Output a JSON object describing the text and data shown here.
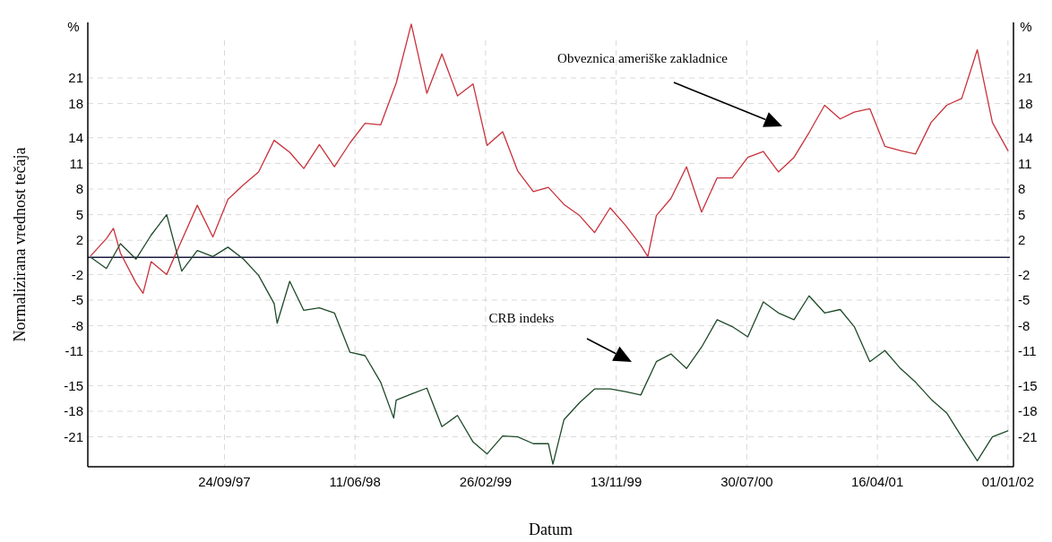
{
  "chart_data": {
    "type": "line",
    "xlabel": "Datum",
    "ylabel": "Normalizirana vrednost tečaja",
    "annotations": [
      "%",
      "%",
      "Obveznica ameriške zakladnice",
      "CRB indeks"
    ],
    "xlim": [
      "1996-12-26",
      "2002-01-12"
    ],
    "xticks": [
      {
        "value": "1997-09-24",
        "label": "24/09/97"
      },
      {
        "value": "1998-06-11",
        "label": "11/06/98"
      },
      {
        "value": "1999-02-26",
        "label": "26/02/99"
      },
      {
        "value": "1999-11-13",
        "label": "13/11/99"
      },
      {
        "value": "2000-07-30",
        "label": "30/07/00"
      },
      {
        "value": "2001-04-16",
        "label": "16/04/01"
      },
      {
        "value": "2002-01-01",
        "label": "01/01/02"
      }
    ],
    "ylim": [
      -24.5,
      27.5
    ],
    "yticks": [
      21,
      18,
      14,
      11,
      8,
      5,
      2,
      -2,
      -5,
      -8,
      -11,
      -15,
      -18,
      -21
    ],
    "y2lim": [
      -24.5,
      27.5
    ],
    "y2ticks": [
      21,
      18,
      14,
      11,
      8,
      5,
      2,
      -2,
      -5,
      -8,
      -11,
      -15,
      -18,
      -21
    ],
    "grid": true,
    "ref_lines": [
      {
        "axis": "y",
        "value": 0,
        "color": "#1a1a40"
      }
    ],
    "series": [
      {
        "color": "#c8323c",
        "x": [
          "1997-01-01",
          "1997-02-01",
          "1997-02-15",
          "1997-03-01",
          "1997-04-01",
          "1997-04-15",
          "1997-05-01",
          "1997-06-01",
          "1997-07-01",
          "1997-08-01",
          "1997-09-01",
          "1997-10-01",
          "1997-11-01",
          "1997-12-01",
          "1998-01-01",
          "1998-02-01",
          "1998-03-01",
          "1998-04-01",
          "1998-05-01",
          "1998-06-01",
          "1998-07-01",
          "1998-08-01",
          "1998-09-01",
          "1998-10-01",
          "1998-11-01",
          "1998-12-01",
          "1999-01-01",
          "1999-02-01",
          "1999-03-01",
          "1999-04-01",
          "1999-05-01",
          "1999-06-01",
          "1999-07-01",
          "1999-08-01",
          "1999-09-01",
          "1999-10-01",
          "1999-11-01",
          "1999-12-01",
          "2000-01-01",
          "2000-01-15",
          "2000-02-01",
          "2000-03-01",
          "2000-04-01",
          "2000-05-01",
          "2000-06-01",
          "2000-07-01",
          "2000-08-01",
          "2000-09-01",
          "2000-10-01",
          "2000-11-01",
          "2000-12-01",
          "2001-01-01",
          "2001-02-01",
          "2001-03-01",
          "2001-04-01",
          "2001-05-01",
          "2001-06-01",
          "2001-07-01",
          "2001-08-01",
          "2001-09-01",
          "2001-10-01",
          "2001-11-01",
          "2001-12-01",
          "2002-01-01"
        ],
        "values": [
          0.2,
          2.2,
          3.4,
          0.5,
          -3.0,
          -4.2,
          -0.5,
          -2.0,
          2.0,
          6.1,
          2.4,
          6.8,
          8.5,
          10.0,
          13.7,
          12.3,
          10.4,
          13.2,
          10.6,
          13.4,
          15.7,
          15.5,
          20.4,
          27.3,
          19.2,
          23.8,
          18.9,
          20.3,
          13.1,
          14.7,
          10.1,
          7.7,
          8.2,
          6.2,
          4.9,
          2.9,
          5.8,
          3.8,
          1.4,
          0.1,
          4.9,
          6.9,
          10.6,
          5.3,
          9.3,
          9.3,
          11.7,
          12.4,
          10.0,
          11.7,
          14.6,
          17.8,
          16.2,
          17.0,
          17.4,
          13.0,
          12.5,
          12.1,
          15.8,
          17.8,
          18.6,
          24.3,
          15.8,
          12.5
        ]
      },
      {
        "color": "#1e4a28",
        "x": [
          "1997-01-01",
          "1997-02-01",
          "1997-03-01",
          "1997-04-01",
          "1997-05-01",
          "1997-06-01",
          "1997-07-01",
          "1997-08-01",
          "1997-09-01",
          "1997-10-01",
          "1997-11-01",
          "1997-12-01",
          "1998-01-01",
          "1998-01-07",
          "1998-02-01",
          "1998-03-01",
          "1998-04-01",
          "1998-05-01",
          "1998-06-01",
          "1998-07-01",
          "1998-08-01",
          "1998-08-27",
          "1998-09-01",
          "1998-10-01",
          "1998-11-01",
          "1998-12-01",
          "1999-01-01",
          "1999-02-01",
          "1999-03-01",
          "1999-04-01",
          "1999-05-01",
          "1999-06-01",
          "1999-07-01",
          "1999-07-10",
          "1999-08-01",
          "1999-09-01",
          "1999-10-01",
          "1999-11-01",
          "1999-12-01",
          "2000-01-01",
          "2000-02-01",
          "2000-03-01",
          "2000-04-01",
          "2000-05-01",
          "2000-06-01",
          "2000-07-01",
          "2000-08-01",
          "2000-09-01",
          "2000-10-01",
          "2000-11-01",
          "2000-12-01",
          "2001-01-01",
          "2001-02-01",
          "2001-03-01",
          "2001-04-01",
          "2001-05-01",
          "2001-06-01",
          "2001-07-01",
          "2001-08-01",
          "2001-09-01",
          "2001-10-01",
          "2001-11-01",
          "2001-12-01",
          "2002-01-01"
        ],
        "values": [
          0,
          -1.3,
          1.6,
          -0.2,
          2.6,
          5.0,
          -1.6,
          0.8,
          0.1,
          1.2,
          -0.2,
          -2.1,
          -5.4,
          -7.7,
          -2.8,
          -6.2,
          -5.9,
          -6.5,
          -11.1,
          -11.5,
          -14.6,
          -18.8,
          -16.7,
          -16.0,
          -15.3,
          -19.8,
          -18.5,
          -21.6,
          -23.0,
          -20.9,
          -21.0,
          -21.8,
          -21.8,
          -24.2,
          -19.0,
          -17.0,
          -15.4,
          -15.4,
          -15.7,
          -16.1,
          -12.2,
          -11.3,
          -13.0,
          -10.5,
          -7.3,
          -8.1,
          -9.3,
          -5.2,
          -6.5,
          -7.3,
          -4.5,
          -6.5,
          -6.1,
          -8.1,
          -12.2,
          -10.9,
          -13.0,
          -14.6,
          -16.6,
          -18.2,
          -21.0,
          -23.8,
          -21.0,
          -20.3
        ]
      }
    ]
  }
}
